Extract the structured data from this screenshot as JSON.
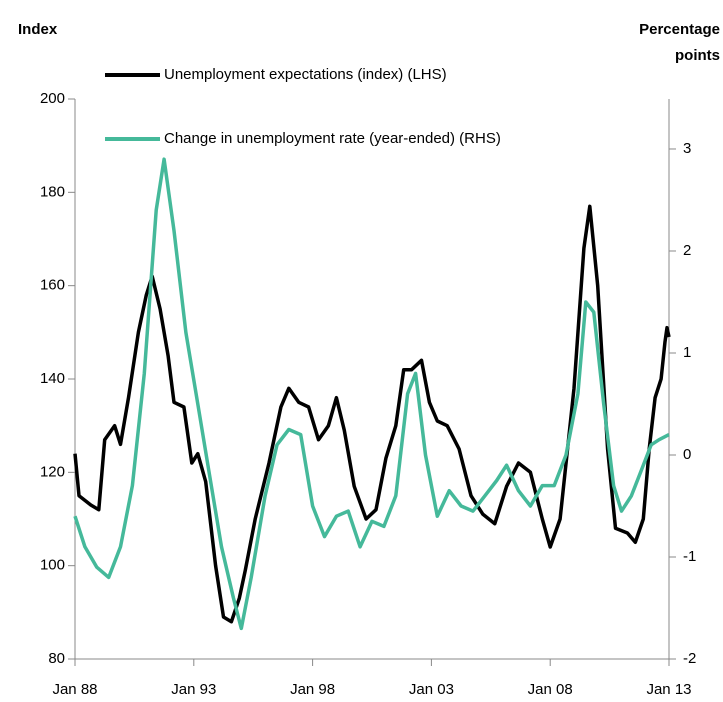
{
  "chart_data": {
    "type": "line",
    "y_label": "Index",
    "y2_label": [
      "Percentage",
      "points"
    ],
    "x": [
      "1988-01",
      "1988-03",
      "1988-06",
      "1988-09",
      "1988-12",
      "1989-01",
      "1989-04",
      "1989-06",
      "1989-09",
      "1989-12",
      "1990-04",
      "1990-06",
      "1990-09",
      "1990-12",
      "1991-01",
      "1991-04",
      "1991-06",
      "1991-08",
      "1991-10",
      "1991-12",
      "1992-03",
      "1992-08",
      "1992-09",
      "1992-12",
      "1993-03",
      "1993-07",
      "1993-09",
      "1993-12",
      "1994-03",
      "1994-04",
      "1994-08",
      "1994-09",
      "1994-12",
      "1995-01",
      "1995-03",
      "1995-06",
      "1995-08",
      "1996-01",
      "1996-03",
      "1996-07",
      "1996-09",
      "1997-01",
      "1997-06",
      "1997-07",
      "1997-11",
      "1998-01",
      "1998-04",
      "1998-07",
      "1998-09",
      "1999-01",
      "1999-05",
      "1999-07",
      "1999-10",
      "2000-01",
      "2000-04",
      "2000-07",
      "2000-09",
      "2001-01",
      "2001-02",
      "2001-07",
      "2001-11",
      "2002-01",
      "2002-03",
      "2002-05",
      "2002-08",
      "2002-10",
      "2002-12",
      "2003-04",
      "2003-09",
      "2003-10",
      "2004-03",
      "2004-04",
      "2004-09",
      "2004-10",
      "2005-03",
      "2005-04",
      "2005-09",
      "2005-10",
      "2006-03",
      "2006-09",
      "2007-03",
      "2007-09",
      "2008-01",
      "2008-03",
      "2008-06",
      "2008-09",
      "2009-01",
      "2009-03",
      "2009-06",
      "2009-07",
      "2009-09",
      "2009-11",
      "2010-01",
      "2010-04",
      "2010-06",
      "2010-09",
      "2010-10",
      "2011-01",
      "2011-04",
      "2011-06",
      "2011-08",
      "2011-12",
      "2012-03",
      "2012-04",
      "2012-06",
      "2012-08",
      "2012-09",
      "2012-11",
      "2012-12",
      "2013-01"
    ],
    "series": [
      {
        "name": "Unemployment expectations (index) (LHS)",
        "color": "#000000",
        "axis": "y",
        "values": [
          124,
          115,
          null,
          113,
          null,
          112,
          127,
          null,
          130,
          126,
          136,
          null,
          150,
          null,
          158,
          162,
          null,
          155,
          null,
          145,
          135,
          134,
          null,
          122,
          124,
          118,
          null,
          100,
          null,
          89,
          88,
          null,
          93,
          null,
          99,
          null,
          110,
          null,
          122,
          null,
          134,
          138,
          135,
          null,
          134,
          null,
          127,
          null,
          130,
          136,
          129,
          null,
          117,
          null,
          110,
          null,
          112,
          null,
          123,
          130,
          142,
          null,
          142,
          null,
          144,
          null,
          135,
          131,
          130,
          null,
          125,
          null,
          115,
          null,
          111,
          null,
          109,
          null,
          117,
          122,
          120,
          110,
          104,
          null,
          110,
          null,
          138,
          null,
          168,
          null,
          177,
          null,
          160,
          null,
          125,
          null,
          108,
          null,
          107,
          null,
          105,
          110,
          125,
          null,
          136,
          null,
          140,
          148,
          151,
          149
        ]
      },
      {
        "name": "Change in unemployment rate (year-ended) (RHS)",
        "color": "#45b99a",
        "axis": "y2",
        "values": [
          -0.6,
          null,
          -0.9,
          null,
          -1.1,
          null,
          null,
          -1.2,
          null,
          -0.9,
          null,
          -0.3,
          null,
          0.8,
          null,
          null,
          2.4,
          null,
          2.9,
          null,
          2.2,
          null,
          1.2,
          null,
          0.5,
          null,
          -0.2,
          null,
          -0.9,
          null,
          null,
          -1.4,
          null,
          -1.7,
          null,
          -1.2,
          null,
          -0.4,
          null,
          0.1,
          null,
          0.25,
          null,
          0.2,
          null,
          -0.5,
          null,
          -0.8,
          null,
          -0.6,
          null,
          -0.55,
          null,
          -0.9,
          null,
          -0.65,
          null,
          -0.7,
          null,
          -0.4,
          null,
          0.6,
          null,
          0.8,
          null,
          0.0,
          null,
          -0.6,
          null,
          -0.35,
          null,
          -0.5,
          null,
          -0.55,
          null,
          -0.4,
          null,
          -0.25,
          -0.1,
          -0.35,
          -0.5,
          -0.3,
          null,
          -0.3,
          null,
          0.0,
          null,
          0.6,
          null,
          1.5,
          null,
          1.4,
          null,
          0.5,
          null,
          -0.3,
          null,
          -0.55,
          null,
          -0.4,
          null,
          -0.1,
          null,
          0.1,
          null,
          0.15,
          null,
          null,
          null,
          0.2
        ]
      }
    ],
    "xlim": [
      "1988-01",
      "2013-01"
    ],
    "xticks": [
      {
        "value": "1988-01",
        "label": "Jan 88"
      },
      {
        "value": "1993-01",
        "label": "Jan 93"
      },
      {
        "value": "1998-01",
        "label": "Jan 98"
      },
      {
        "value": "2003-01",
        "label": "Jan 03"
      },
      {
        "value": "2008-01",
        "label": "Jan 08"
      },
      {
        "value": "2013-01",
        "label": "Jan 13"
      }
    ],
    "ylim": [
      80,
      200
    ],
    "yticks": [
      80,
      100,
      120,
      140,
      160,
      180,
      200
    ],
    "y2lim": [
      -2,
      3.49
    ],
    "y2ticks": [
      -2,
      -1,
      0,
      1,
      2,
      3
    ],
    "grid": false,
    "legend": "top"
  }
}
